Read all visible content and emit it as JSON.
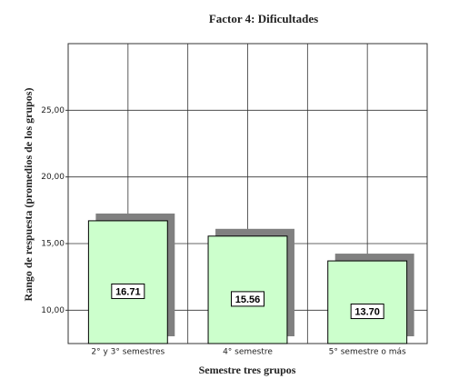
{
  "chart_data": {
    "type": "bar",
    "title": "Factor 4: Dificultades",
    "x_label": "Semestre tres grupos",
    "y_label": "Rango de respuesta (promedios de los grupos)",
    "categories": [
      "2° y 3° semestres",
      "4° semestre",
      "5° semestre o más"
    ],
    "values": [
      16.71,
      15.56,
      13.7
    ],
    "value_labels": [
      "16.71",
      "15.56",
      "13.70"
    ],
    "color": "#ccffcc",
    "shadow_color": "#808080",
    "ylim": [
      7.5,
      30
    ],
    "yticks": [
      {
        "value": 10,
        "label": "10,00"
      },
      {
        "value": 15,
        "label": "15,00"
      },
      {
        "value": 20,
        "label": "20,00"
      },
      {
        "value": 25,
        "label": "25,00"
      }
    ],
    "grid": true
  }
}
